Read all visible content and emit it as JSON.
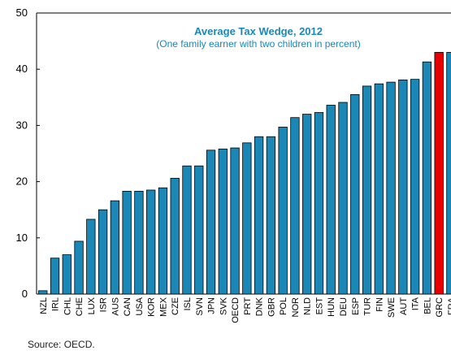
{
  "chart_data": {
    "type": "bar",
    "title": "Average Tax Wedge, 2012",
    "subtitle": "(One family earner with two children in percent)",
    "xlabel": "",
    "ylabel": "",
    "ylim": [
      0,
      50
    ],
    "yticks": [
      0,
      10,
      20,
      30,
      40,
      50
    ],
    "grid": false,
    "categories": [
      "NZL",
      "IRL",
      "CHL",
      "CHE",
      "LUX",
      "ISR",
      "AUS",
      "CAN",
      "USA",
      "KOR",
      "MEX",
      "CZE",
      "ISL",
      "SVN",
      "JPN",
      "SVK",
      "OECD",
      "PRT",
      "DNK",
      "GBR",
      "POL",
      "NOR",
      "NLD",
      "EST",
      "HUN",
      "DEU",
      "ESP",
      "TUR",
      "FIN",
      "SWE",
      "AUT",
      "ITA",
      "BEL",
      "GRC",
      "FRA"
    ],
    "values": [
      0.6,
      6.4,
      7.0,
      9.4,
      13.3,
      15.0,
      16.6,
      18.3,
      18.3,
      18.5,
      18.9,
      20.6,
      22.8,
      22.8,
      25.6,
      25.8,
      26.0,
      26.9,
      28.0,
      28.0,
      29.7,
      31.4,
      32.0,
      32.3,
      33.6,
      34.1,
      35.5,
      37.0,
      37.4,
      37.7,
      38.1,
      38.2,
      41.3,
      43.0,
      43.0
    ],
    "highlight": [
      "GRC"
    ],
    "colors": {
      "bar": "#1b87b6",
      "highlight": "#e60000",
      "title": "#1b87b6",
      "axis": "#000000"
    }
  },
  "source": "Source: OECD."
}
